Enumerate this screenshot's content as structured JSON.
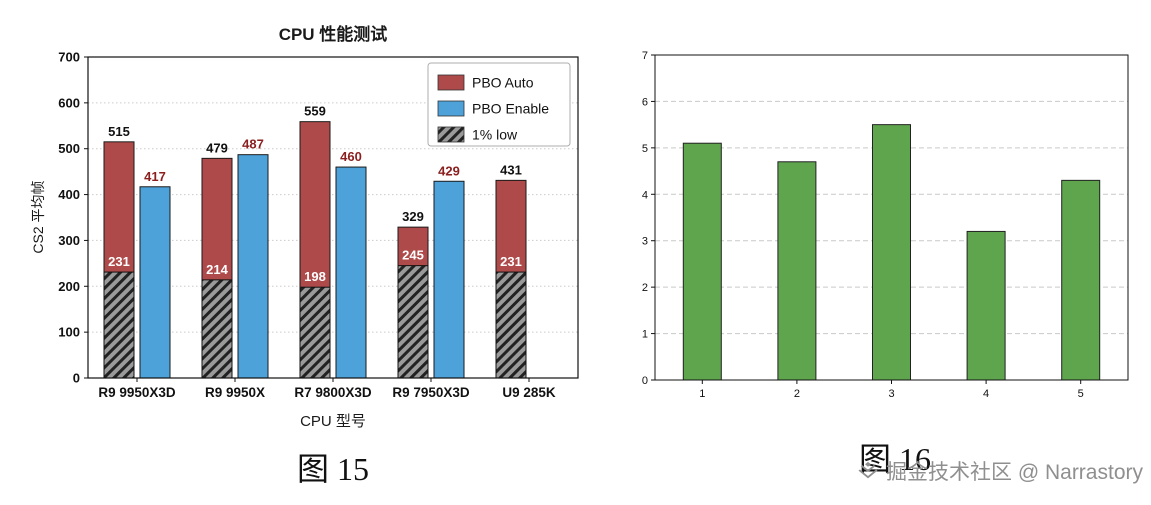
{
  "chart_data": [
    {
      "id": "fig15",
      "type": "bar",
      "title": "CPU 性能测试",
      "xlabel": "CPU 型号",
      "ylabel": "CS2 平均帧",
      "ylim": [
        0,
        700
      ],
      "yticks": [
        0,
        100,
        200,
        300,
        400,
        500,
        600,
        700
      ],
      "categories": [
        "R9 9950X3D",
        "R9 9950X",
        "R7 9800X3D",
        "R9 7950X3D",
        "U9 285K"
      ],
      "series": [
        {
          "name": "PBO Auto",
          "type": "solid",
          "color": "#ae4a49",
          "label_color": "#111111",
          "values": [
            515,
            479,
            559,
            329,
            431
          ]
        },
        {
          "name": "PBO Enable",
          "type": "solid",
          "color": "#4da2d9",
          "label_color": "#8b1f1f",
          "values": [
            417,
            487,
            460,
            429,
            null
          ]
        },
        {
          "name": "1% low",
          "type": "hatched",
          "color": "#9a9a9a",
          "hatch_color": "#222222",
          "label_color": "#ffffff",
          "values": [
            231,
            214,
            198,
            245,
            231
          ]
        }
      ],
      "legend": {
        "position": "top-right",
        "items": [
          "PBO Auto",
          "PBO Enable",
          "1% low"
        ]
      },
      "grid": "dotted"
    },
    {
      "id": "fig16",
      "type": "bar",
      "title": "",
      "categories": [
        "1",
        "2",
        "3",
        "4",
        "5"
      ],
      "values": [
        5.1,
        4.7,
        5.5,
        3.2,
        4.3
      ],
      "bar_color": "#5fa54d",
      "bar_edge": "#222222",
      "ylim": [
        0,
        7
      ],
      "yticks": [
        0,
        1,
        2,
        3,
        4,
        5,
        6,
        7
      ],
      "grid": "dashed"
    }
  ],
  "captions": {
    "fig15": "图 15",
    "fig16": "图 16"
  },
  "watermark": {
    "text": "掘金技术社区 @ Narrastory",
    "color": "#8f8f8f"
  }
}
